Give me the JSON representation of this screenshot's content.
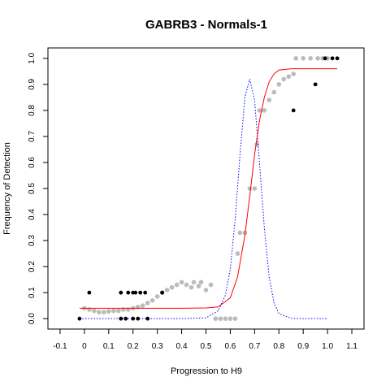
{
  "chart_data": {
    "type": "scatter",
    "title": "GABRB3 - Normals-1",
    "xlabel": "Progression to H9",
    "ylabel": "Frequency of Detection",
    "xlim": [
      -0.15,
      1.15
    ],
    "ylim": [
      -0.04,
      1.04
    ],
    "x_ticks": [
      "-0.1",
      "0",
      "0.1",
      "0.2",
      "0.3",
      "0.4",
      "0.5",
      "0.6",
      "0.7",
      "0.8",
      "0.9",
      "1.0",
      "1.1"
    ],
    "y_ticks": [
      "0.0",
      "0.1",
      "0.2",
      "0.3",
      "0.4",
      "0.5",
      "0.6",
      "0.7",
      "0.8",
      "0.9",
      "1.0"
    ],
    "grid": false,
    "legend": "none",
    "colors": {
      "observed_points": "#000000",
      "smoothed_points": "#bbbbbb",
      "sigmoid_fit": "#ff0000",
      "derivative_curve": "#0000ff"
    },
    "series": [
      {
        "kind": "observed points (black)",
        "points": [
          [
            -0.02,
            0.0
          ],
          [
            0.02,
            0.1
          ],
          [
            0.15,
            0.1
          ],
          [
            0.15,
            0.0
          ],
          [
            0.17,
            0.0
          ],
          [
            0.18,
            0.1
          ],
          [
            0.2,
            0.1
          ],
          [
            0.2,
            0.0
          ],
          [
            0.21,
            0.1
          ],
          [
            0.22,
            0.0
          ],
          [
            0.23,
            0.1
          ],
          [
            0.25,
            0.1
          ],
          [
            0.26,
            0.0
          ],
          [
            0.32,
            0.1
          ],
          [
            0.86,
            0.8
          ],
          [
            0.95,
            0.9
          ],
          [
            0.99,
            1.0
          ],
          [
            1.02,
            1.0
          ],
          [
            1.04,
            1.0
          ]
        ]
      },
      {
        "kind": "smoothed points (gray)",
        "points": [
          [
            0.0,
            0.04
          ],
          [
            0.02,
            0.035
          ],
          [
            0.04,
            0.03
          ],
          [
            0.06,
            0.025
          ],
          [
            0.08,
            0.025
          ],
          [
            0.1,
            0.028
          ],
          [
            0.12,
            0.03
          ],
          [
            0.14,
            0.03
          ],
          [
            0.16,
            0.035
          ],
          [
            0.18,
            0.035
          ],
          [
            0.2,
            0.04
          ],
          [
            0.22,
            0.045
          ],
          [
            0.24,
            0.05
          ],
          [
            0.26,
            0.06
          ],
          [
            0.28,
            0.07
          ],
          [
            0.3,
            0.085
          ],
          [
            0.32,
            0.1
          ],
          [
            0.34,
            0.11
          ],
          [
            0.36,
            0.12
          ],
          [
            0.38,
            0.13
          ],
          [
            0.4,
            0.14
          ],
          [
            0.42,
            0.13
          ],
          [
            0.44,
            0.12
          ],
          [
            0.45,
            0.14
          ],
          [
            0.47,
            0.125
          ],
          [
            0.48,
            0.14
          ],
          [
            0.5,
            0.11
          ],
          [
            0.52,
            0.13
          ],
          [
            0.54,
            0.0
          ],
          [
            0.56,
            0.0
          ],
          [
            0.58,
            0.0
          ],
          [
            0.6,
            0.0
          ],
          [
            0.62,
            0.0
          ],
          [
            0.63,
            0.25
          ],
          [
            0.64,
            0.33
          ],
          [
            0.66,
            0.33
          ],
          [
            0.68,
            0.5
          ],
          [
            0.7,
            0.5
          ],
          [
            0.71,
            0.67
          ],
          [
            0.72,
            0.8
          ],
          [
            0.74,
            0.8
          ],
          [
            0.76,
            0.84
          ],
          [
            0.78,
            0.87
          ],
          [
            0.8,
            0.9
          ],
          [
            0.82,
            0.92
          ],
          [
            0.84,
            0.93
          ],
          [
            0.86,
            0.94
          ],
          [
            0.87,
            1.0
          ],
          [
            0.9,
            1.0
          ],
          [
            0.93,
            1.0
          ],
          [
            0.96,
            1.0
          ],
          [
            0.98,
            1.0
          ],
          [
            1.0,
            1.0
          ]
        ]
      },
      {
        "kind": "sigmoid fit (red)",
        "x": [
          -0.02,
          0.1,
          0.2,
          0.3,
          0.4,
          0.5,
          0.55,
          0.6,
          0.63,
          0.66,
          0.68,
          0.7,
          0.72,
          0.74,
          0.76,
          0.78,
          0.8,
          0.85,
          0.9,
          1.0,
          1.04
        ],
        "y": [
          0.04,
          0.04,
          0.04,
          0.04,
          0.04,
          0.041,
          0.045,
          0.08,
          0.16,
          0.32,
          0.47,
          0.63,
          0.76,
          0.85,
          0.91,
          0.94,
          0.955,
          0.96,
          0.96,
          0.96,
          0.96
        ]
      },
      {
        "kind": "derivative curve (blue dotted)",
        "x": [
          -0.02,
          0.2,
          0.4,
          0.5,
          0.55,
          0.58,
          0.6,
          0.62,
          0.64,
          0.66,
          0.68,
          0.7,
          0.72,
          0.74,
          0.76,
          0.78,
          0.8,
          0.85,
          0.9,
          1.0
        ],
        "y": [
          0.0,
          0.0,
          0.0,
          0.003,
          0.03,
          0.09,
          0.19,
          0.38,
          0.63,
          0.85,
          0.92,
          0.84,
          0.6,
          0.35,
          0.16,
          0.06,
          0.02,
          0.001,
          0.0,
          0.0
        ]
      }
    ]
  }
}
